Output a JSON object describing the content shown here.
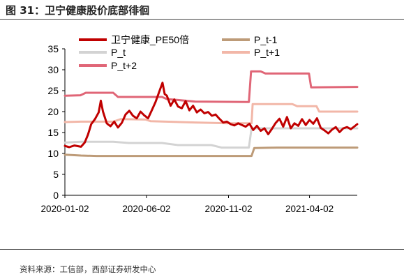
{
  "header": {
    "title": "图 31：卫宁健康股价底部徘徊"
  },
  "footer": {
    "source": "资料来源：工信部，西部证券研发中心"
  },
  "chart_data": {
    "type": "line",
    "x_tick_labels": [
      "2020-01-02",
      "2020-06-02",
      "2020-11-02",
      "2021-04-02"
    ],
    "x_tick_dates": [
      "2020-01-02",
      "2020-06-02",
      "2020-11-02",
      "2021-04-02"
    ],
    "x_range": [
      "2020-01-02",
      "2021-06-30"
    ],
    "ylim": [
      0,
      35
    ],
    "yticks": [
      0,
      5,
      10,
      15,
      20,
      25,
      30,
      35
    ],
    "grid": false,
    "legend_position": "top",
    "series": [
      {
        "name": "卫宁健康_PE50倍",
        "color": "#C00000",
        "width": 3,
        "points": [
          [
            "2020-01-02",
            11.8
          ],
          [
            "2020-01-10",
            11.5
          ],
          [
            "2020-01-20",
            11.9
          ],
          [
            "2020-02-01",
            11.6
          ],
          [
            "2020-02-08",
            12.6
          ],
          [
            "2020-02-14",
            14.5
          ],
          [
            "2020-02-20",
            17.0
          ],
          [
            "2020-02-27",
            18.2
          ],
          [
            "2020-03-05",
            19.8
          ],
          [
            "2020-03-09",
            22.6
          ],
          [
            "2020-03-13",
            20.0
          ],
          [
            "2020-03-20",
            17.2
          ],
          [
            "2020-03-27",
            16.5
          ],
          [
            "2020-04-03",
            17.6
          ],
          [
            "2020-04-10",
            16.2
          ],
          [
            "2020-04-17",
            17.3
          ],
          [
            "2020-04-24",
            19.3
          ],
          [
            "2020-05-01",
            20.2
          ],
          [
            "2020-05-08",
            19.0
          ],
          [
            "2020-05-15",
            18.4
          ],
          [
            "2020-05-22",
            20.0
          ],
          [
            "2020-05-29",
            19.1
          ],
          [
            "2020-06-05",
            18.4
          ],
          [
            "2020-06-12",
            20.3
          ],
          [
            "2020-06-19",
            22.3
          ],
          [
            "2020-06-26",
            24.8
          ],
          [
            "2020-07-02",
            26.9
          ],
          [
            "2020-07-06",
            24.2
          ],
          [
            "2020-07-10",
            23.8
          ],
          [
            "2020-07-17",
            21.4
          ],
          [
            "2020-07-24",
            22.9
          ],
          [
            "2020-07-31",
            21.2
          ],
          [
            "2020-08-07",
            20.8
          ],
          [
            "2020-08-14",
            22.5
          ],
          [
            "2020-08-21",
            20.3
          ],
          [
            "2020-08-28",
            21.4
          ],
          [
            "2020-09-04",
            19.8
          ],
          [
            "2020-09-11",
            20.5
          ],
          [
            "2020-09-18",
            19.6
          ],
          [
            "2020-09-25",
            19.9
          ],
          [
            "2020-10-02",
            19.0
          ],
          [
            "2020-10-09",
            19.3
          ],
          [
            "2020-10-16",
            18.3
          ],
          [
            "2020-10-23",
            17.4
          ],
          [
            "2020-10-30",
            17.6
          ],
          [
            "2020-11-06",
            17.0
          ],
          [
            "2020-11-13",
            16.7
          ],
          [
            "2020-11-20",
            17.2
          ],
          [
            "2020-11-27",
            16.8
          ],
          [
            "2020-12-04",
            16.4
          ],
          [
            "2020-12-11",
            17.1
          ],
          [
            "2020-12-18",
            15.6
          ],
          [
            "2020-12-25",
            16.6
          ],
          [
            "2021-01-01",
            15.4
          ],
          [
            "2021-01-08",
            16.0
          ],
          [
            "2021-01-15",
            14.6
          ],
          [
            "2021-01-22",
            15.9
          ],
          [
            "2021-01-29",
            17.3
          ],
          [
            "2021-02-05",
            18.3
          ],
          [
            "2021-02-12",
            16.4
          ],
          [
            "2021-02-19",
            18.7
          ],
          [
            "2021-02-26",
            16.0
          ],
          [
            "2021-03-05",
            17.2
          ],
          [
            "2021-03-12",
            16.6
          ],
          [
            "2021-03-19",
            18.2
          ],
          [
            "2021-03-26",
            16.8
          ],
          [
            "2021-04-02",
            18.0
          ],
          [
            "2021-04-09",
            17.1
          ],
          [
            "2021-04-16",
            18.4
          ],
          [
            "2021-04-23",
            16.1
          ],
          [
            "2021-04-30",
            15.5
          ],
          [
            "2021-05-07",
            14.8
          ],
          [
            "2021-05-14",
            15.7
          ],
          [
            "2021-05-21",
            16.3
          ],
          [
            "2021-05-28",
            15.1
          ],
          [
            "2021-06-04",
            16.0
          ],
          [
            "2021-06-11",
            16.3
          ],
          [
            "2021-06-18",
            15.8
          ],
          [
            "2021-06-25",
            16.5
          ],
          [
            "2021-06-30",
            17.0
          ]
        ]
      },
      {
        "name": "P_t",
        "color": "#D3D3D3",
        "width": 3,
        "points": [
          [
            "2020-01-02",
            12.6
          ],
          [
            "2020-02-01",
            12.8
          ],
          [
            "2020-04-01",
            12.8
          ],
          [
            "2020-04-30",
            12.5
          ],
          [
            "2020-07-01",
            12.5
          ],
          [
            "2020-07-31",
            12.0
          ],
          [
            "2020-10-01",
            12.0
          ],
          [
            "2020-10-20",
            11.4
          ],
          [
            "2020-12-10",
            11.4
          ],
          [
            "2020-12-15",
            16.0
          ],
          [
            "2021-06-30",
            16.0
          ]
        ]
      },
      {
        "name": "P_t+2",
        "color": "#E06677",
        "width": 3,
        "points": [
          [
            "2020-01-02",
            23.8
          ],
          [
            "2020-01-31",
            23.9
          ],
          [
            "2020-02-10",
            24.5
          ],
          [
            "2020-04-01",
            24.5
          ],
          [
            "2020-04-10",
            23.5
          ],
          [
            "2020-07-01",
            23.5
          ],
          [
            "2020-07-10",
            23.0
          ],
          [
            "2020-09-01",
            22.4
          ],
          [
            "2020-12-10",
            22.3
          ],
          [
            "2020-12-14",
            29.6
          ],
          [
            "2021-01-01",
            29.6
          ],
          [
            "2021-01-10",
            29.1
          ],
          [
            "2021-04-01",
            29.1
          ],
          [
            "2021-04-05",
            25.8
          ],
          [
            "2021-06-30",
            25.9
          ]
        ]
      },
      {
        "name": "P_t-1",
        "color": "#BD9B78",
        "width": 3,
        "points": [
          [
            "2020-01-02",
            9.7
          ],
          [
            "2020-02-01",
            9.5
          ],
          [
            "2020-03-01",
            9.4
          ],
          [
            "2020-12-15",
            9.4
          ],
          [
            "2020-12-20",
            11.3
          ],
          [
            "2021-02-01",
            11.4
          ],
          [
            "2021-06-30",
            11.4
          ]
        ]
      },
      {
        "name": "P_t+1",
        "color": "#F2B7A8",
        "width": 3,
        "points": [
          [
            "2020-01-02",
            17.5
          ],
          [
            "2020-02-01",
            17.6
          ],
          [
            "2020-04-01",
            17.6
          ],
          [
            "2020-04-15",
            18.2
          ],
          [
            "2020-06-01",
            18.1
          ],
          [
            "2020-06-10",
            17.7
          ],
          [
            "2020-09-01",
            17.4
          ],
          [
            "2020-11-01",
            17.2
          ],
          [
            "2020-12-15",
            17.2
          ],
          [
            "2020-12-17",
            21.8
          ],
          [
            "2021-03-01",
            21.8
          ],
          [
            "2021-03-10",
            21.3
          ],
          [
            "2021-04-15",
            21.3
          ],
          [
            "2021-04-20",
            20.0
          ],
          [
            "2021-06-30",
            20.0
          ]
        ]
      }
    ],
    "legend_rows": [
      [
        "卫宁健康_PE50倍",
        "P_t-1"
      ],
      [
        "P_t",
        "P_t+1"
      ],
      [
        "P_t+2"
      ]
    ]
  }
}
